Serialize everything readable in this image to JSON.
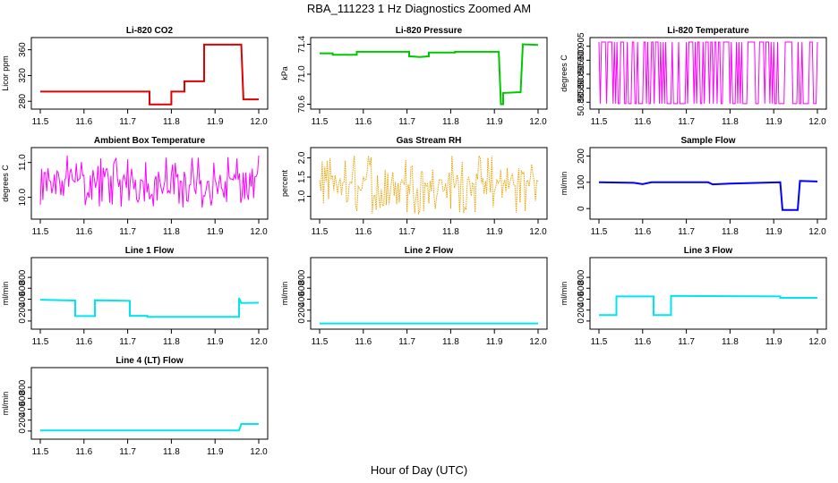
{
  "figure": {
    "title": "RBA_111223  1 Hz Diagnostics Zoomed AM",
    "xlabel": "Hour of Day (UTC)",
    "colors": {
      "co2": "#e00000",
      "pressure": "#00c800",
      "licor_temp": "#ff00ff",
      "ambient_temp": "#ff00ff",
      "rh": "#e8a000",
      "sample_flow": "#0000ff",
      "line_flow": "#00e5ee"
    }
  },
  "chart_data": [
    {
      "type": "line",
      "title": "Li-820 CO2",
      "xlabel": "",
      "ylabel": "Licor ppm",
      "xlim": [
        11.5,
        12.0
      ],
      "ylim": [
        272,
        372
      ],
      "xticks": [
        "11.5",
        "11.6",
        "11.7",
        "11.8",
        "11.9",
        "12.0"
      ],
      "yticks": [
        "280",
        "320",
        "360"
      ],
      "color_key": "co2",
      "style": "line",
      "x": [
        11.5,
        11.75,
        11.75,
        11.8,
        11.8,
        11.83,
        11.83,
        11.875,
        11.875,
        11.96,
        11.965,
        12.0
      ],
      "y": [
        295,
        295,
        275,
        275,
        295,
        295,
        311,
        311,
        368,
        368,
        283,
        283
      ]
    },
    {
      "type": "line",
      "title": "Li-820 Pressure",
      "xlabel": "",
      "ylabel": "kPa",
      "xlim": [
        11.5,
        12.0
      ],
      "ylim": [
        70.57,
        71.43
      ],
      "xticks": [
        "11.5",
        "11.6",
        "11.7",
        "11.8",
        "11.9",
        "12.0"
      ],
      "yticks": [
        "70.6",
        "71.0",
        "71.4"
      ],
      "color_key": "pressure",
      "style": "line",
      "x": [
        11.5,
        11.53,
        11.53,
        11.585,
        11.585,
        11.705,
        11.705,
        11.73,
        11.75,
        11.75,
        11.81,
        11.81,
        11.91,
        11.915,
        11.92,
        11.92,
        11.955,
        11.96,
        11.965,
        11.965,
        12.0
      ],
      "y": [
        71.28,
        71.28,
        71.26,
        71.26,
        71.3,
        71.3,
        71.24,
        71.23,
        71.24,
        71.29,
        71.29,
        71.3,
        71.3,
        70.6,
        70.6,
        70.75,
        70.76,
        70.76,
        71.38,
        71.4,
        71.39
      ]
    },
    {
      "type": "line",
      "title": "Li-820 Temperature",
      "xlabel": "",
      "ylabel": "degrees C",
      "xlim": [
        11.5,
        12.0
      ],
      "ylim": [
        50.8835,
        50.9065
      ],
      "xticks": [
        "11.5",
        "11.6",
        "11.7",
        "11.8",
        "11.9",
        "12.0"
      ],
      "yticks": [
        "50.885",
        "50.890",
        "50.895",
        "50.900",
        "50.905"
      ],
      "color_key": "licor_temp",
      "style": "noise",
      "noise": {
        "low": 50.8845,
        "high": 50.9065
      }
    },
    {
      "type": "line",
      "title": "Ambient Box Temperature",
      "xlabel": "",
      "ylabel": "degrees C",
      "xlim": [
        11.5,
        12.0
      ],
      "ylim": [
        9.45,
        11.3
      ],
      "xticks": [
        "11.5",
        "11.6",
        "11.7",
        "11.8",
        "11.9",
        "12.0"
      ],
      "yticks": [
        "10.0",
        "11.0"
      ],
      "color_key": "ambient_temp",
      "style": "noise",
      "noise": {
        "low": 9.7,
        "high": 11.2
      }
    },
    {
      "type": "line",
      "title": "Gas Stream RH",
      "xlabel": "",
      "ylabel": "percent",
      "xlim": [
        11.5,
        12.0
      ],
      "ylim": [
        0.48,
        2.15
      ],
      "xticks": [
        "11.5",
        "11.6",
        "11.7",
        "11.8",
        "11.9",
        "12.0"
      ],
      "yticks": [
        "1.0",
        "1.5",
        "2.0"
      ],
      "color_key": "rh",
      "style": "noise",
      "noise": {
        "low": 0.55,
        "high": 2.05
      }
    },
    {
      "type": "line",
      "title": "Sample Flow",
      "xlabel": "",
      "ylabel": "ml/min",
      "xlim": [
        11.5,
        12.0
      ],
      "ylim": [
        -30,
        215
      ],
      "xticks": [
        "11.5",
        "11.6",
        "11.7",
        "11.8",
        "11.9",
        "12.0"
      ],
      "yticks": [
        "0",
        "100",
        "200"
      ],
      "color_key": "sample_flow",
      "style": "line",
      "x": [
        11.5,
        11.58,
        11.6,
        11.62,
        11.75,
        11.76,
        11.8,
        11.915,
        11.92,
        11.955,
        11.96,
        12.0
      ],
      "y": [
        100,
        98,
        93,
        100,
        100,
        92,
        95,
        100,
        -5,
        -5,
        105,
        103
      ]
    },
    {
      "type": "line",
      "title": "Line 1 Flow",
      "xlabel": "",
      "ylabel": "ml/min",
      "xlim": [
        11.5,
        12.0
      ],
      "ylim": [
        -100,
        1080
      ],
      "xticks": [
        "11.5",
        "11.6",
        "11.7",
        "11.8",
        "11.9",
        "12.0"
      ],
      "yticks": [
        "0",
        "200",
        "400",
        "600",
        "800"
      ],
      "color_key": "line_flow",
      "style": "line",
      "x": [
        11.5,
        11.58,
        11.58,
        11.625,
        11.625,
        11.705,
        11.705,
        11.745,
        11.745,
        11.955,
        11.955,
        11.96,
        12.0
      ],
      "y": [
        390,
        375,
        90,
        90,
        380,
        370,
        95,
        95,
        75,
        75,
        420,
        330,
        335
      ]
    },
    {
      "type": "line",
      "title": "Line 2 Flow",
      "xlabel": "",
      "ylabel": "ml/min",
      "xlim": [
        11.5,
        12.0
      ],
      "ylim": [
        -100,
        1080
      ],
      "xticks": [
        "11.5",
        "11.6",
        "11.7",
        "11.8",
        "11.9",
        "12.0"
      ],
      "yticks": [
        "0",
        "200",
        "400",
        "600",
        "800"
      ],
      "color_key": "line_flow",
      "style": "line",
      "x": [
        11.5,
        12.0
      ],
      "y": [
        -45,
        -45
      ]
    },
    {
      "type": "line",
      "title": "Line 3 Flow",
      "xlabel": "",
      "ylabel": "ml/min",
      "xlim": [
        11.5,
        12.0
      ],
      "ylim": [
        -100,
        1080
      ],
      "xticks": [
        "11.5",
        "11.6",
        "11.7",
        "11.8",
        "11.9",
        "12.0"
      ],
      "yticks": [
        "0",
        "200",
        "400",
        "600",
        "800"
      ],
      "color_key": "line_flow",
      "style": "line",
      "x": [
        11.5,
        11.54,
        11.54,
        11.625,
        11.625,
        11.665,
        11.665,
        11.915,
        11.915,
        12.0
      ],
      "y": [
        110,
        110,
        450,
        450,
        110,
        110,
        460,
        450,
        425,
        425
      ]
    },
    {
      "type": "line",
      "title": "Line 4 (LT) Flow",
      "xlabel": "",
      "ylabel": "ml/min",
      "xlim": [
        11.5,
        12.0
      ],
      "ylim": [
        -100,
        1080
      ],
      "xticks": [
        "11.5",
        "11.6",
        "11.7",
        "11.8",
        "11.9",
        "12.0"
      ],
      "yticks": [
        "0",
        "200",
        "400",
        "600",
        "800"
      ],
      "color_key": "line_flow",
      "style": "line",
      "x": [
        11.5,
        11.955,
        11.96,
        12.0
      ],
      "y": [
        10,
        10,
        130,
        130
      ]
    }
  ]
}
